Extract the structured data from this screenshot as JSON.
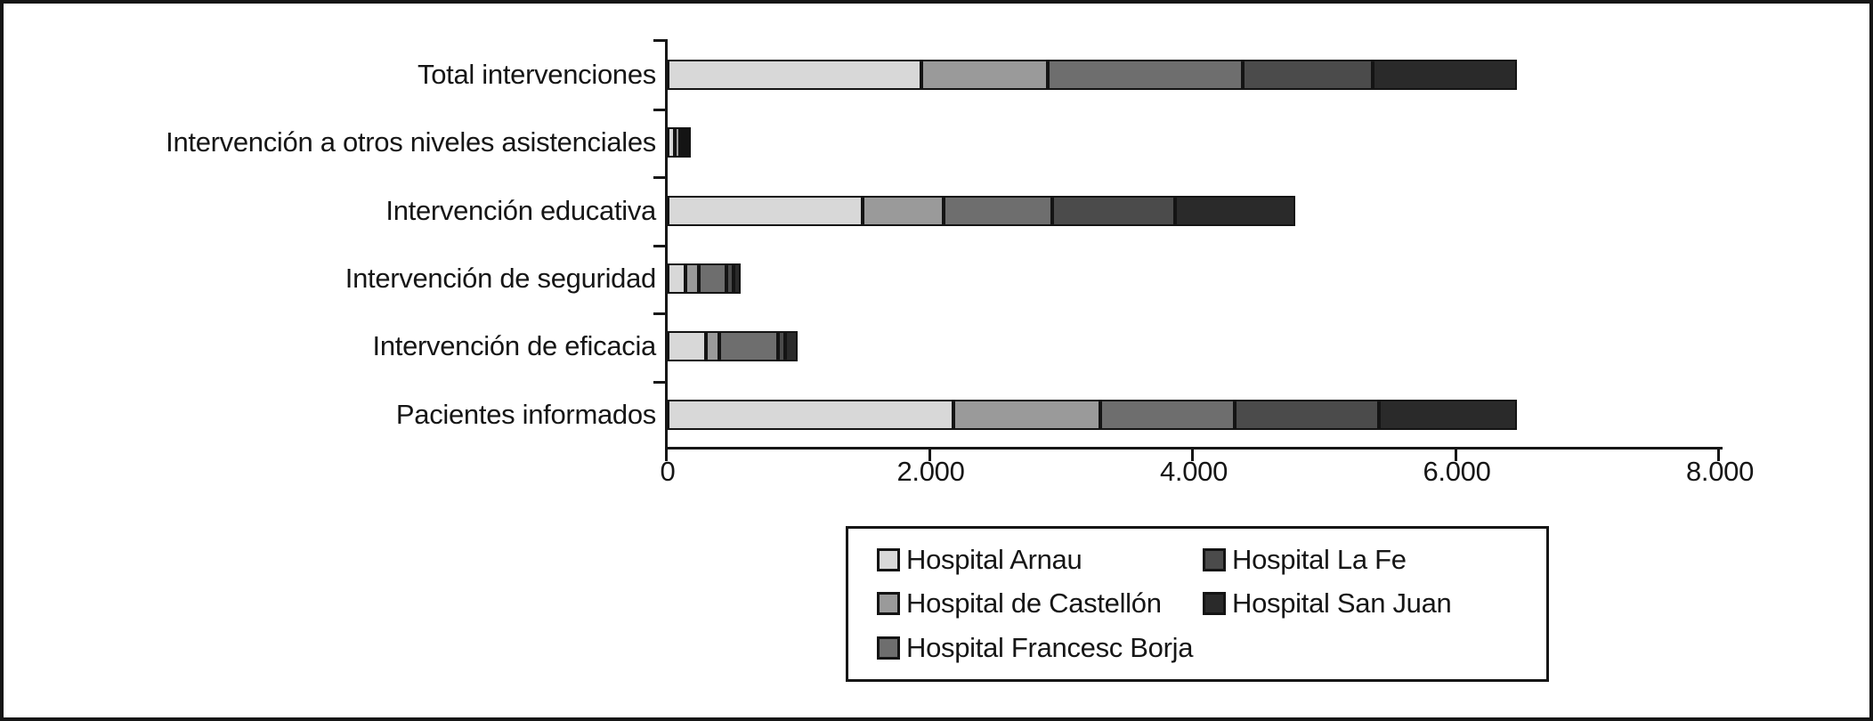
{
  "chart_data": {
    "type": "bar",
    "orientation": "horizontal",
    "stacked": true,
    "title": "",
    "xlabel": "",
    "ylabel": "",
    "grid": false,
    "xlim": [
      0,
      8000
    ],
    "xticks": [
      0,
      2000,
      4000,
      6000,
      8000
    ],
    "xtick_labels": [
      "0",
      "2.000",
      "4.000",
      "6.000",
      "8.000"
    ],
    "categories": [
      "Total intervenciones",
      "Intervención a otros niveles asistenciales",
      "Intervención educativa",
      "Intervención de seguridad",
      "Intervención de eficacia",
      "Pacientes informados"
    ],
    "series": [
      {
        "name": "Hospital Arnau",
        "color": "#d8d8d8",
        "values": [
          1930,
          55,
          1480,
          135,
          290,
          2170
        ]
      },
      {
        "name": "Hospital de Castellón",
        "color": "#9a9a9a",
        "values": [
          960,
          40,
          620,
          100,
          100,
          1120
        ]
      },
      {
        "name": "Hospital Francesc Borja",
        "color": "#6e6e6e",
        "values": [
          1480,
          20,
          825,
          210,
          450,
          1020
        ]
      },
      {
        "name": "Hospital La Fe",
        "color": "#4b4b4b",
        "values": [
          990,
          15,
          935,
          55,
          55,
          1100
        ]
      },
      {
        "name": "Hospital San Juan",
        "color": "#2a2a2a",
        "values": [
          1095,
          12,
          910,
          55,
          90,
          1045
        ]
      }
    ],
    "legend_position": "bottom",
    "legend_columns": 2,
    "outline_color": "#141414",
    "axis_color": "#161616"
  }
}
